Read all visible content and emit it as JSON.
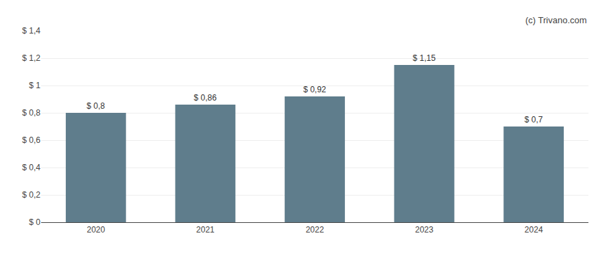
{
  "chart_data": {
    "type": "bar",
    "categories": [
      "2020",
      "2021",
      "2022",
      "2023",
      "2024"
    ],
    "values": [
      0.8,
      0.86,
      0.92,
      1.15,
      0.7
    ],
    "value_labels": [
      "$ 0,8",
      "$ 0,86",
      "$ 0,92",
      "$ 1,15",
      "$ 0,7"
    ],
    "data_labels": true,
    "color": "#5f7d8c",
    "ylim": [
      0,
      1.4
    ],
    "yticks": [
      {
        "value": 0,
        "label": "$ 0"
      },
      {
        "value": 0.2,
        "label": "$ 0,2"
      },
      {
        "value": 0.4,
        "label": "$ 0,4"
      },
      {
        "value": 0.6,
        "label": "$ 0,6"
      },
      {
        "value": 0.8,
        "label": "$ 0,8"
      },
      {
        "value": 1.0,
        "label": "$ 1"
      },
      {
        "value": 1.2,
        "label": "$ 1,2"
      },
      {
        "value": 1.4,
        "label": "$ 1,4"
      }
    ],
    "grid": true,
    "annotations": [
      "(c) Trivano.com"
    ]
  }
}
